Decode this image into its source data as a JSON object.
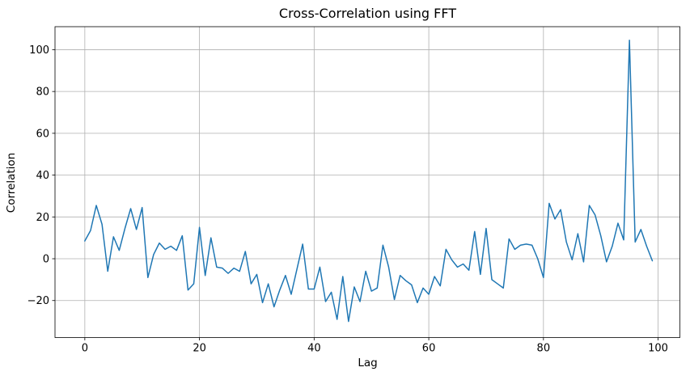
{
  "chart_data": {
    "type": "line",
    "title": "Cross-Correlation using FFT",
    "xlabel": "Lag",
    "ylabel": "Correlation",
    "xlim": [
      -5.2,
      103.8
    ],
    "ylim": [
      -37.7,
      111.0
    ],
    "xticks": [
      0,
      20,
      40,
      60,
      80,
      100
    ],
    "yticks": [
      -20,
      0,
      20,
      40,
      60,
      80,
      100
    ],
    "grid": true,
    "legend": "none",
    "line_color": "#1f77b4",
    "grid_color": "#b0b0b0",
    "background_color": "#ffffff",
    "x": [
      0,
      1,
      2,
      3,
      4,
      5,
      6,
      7,
      8,
      9,
      10,
      11,
      12,
      13,
      14,
      15,
      16,
      17,
      18,
      19,
      20,
      21,
      22,
      23,
      24,
      25,
      26,
      27,
      28,
      29,
      30,
      31,
      32,
      33,
      34,
      35,
      36,
      37,
      38,
      39,
      40,
      41,
      42,
      43,
      44,
      45,
      46,
      47,
      48,
      49,
      50,
      51,
      52,
      53,
      54,
      55,
      56,
      57,
      58,
      59,
      60,
      61,
      62,
      63,
      64,
      65,
      66,
      67,
      68,
      69,
      70,
      71,
      72,
      73,
      74,
      75,
      76,
      77,
      78,
      79,
      80,
      81,
      82,
      83,
      84,
      85,
      86,
      87,
      88,
      89,
      90,
      91,
      92,
      93,
      94,
      95,
      96,
      97,
      98,
      99
    ],
    "values": [
      8.5,
      13.5,
      25.5,
      16.5,
      -6,
      10.5,
      4,
      14.5,
      24,
      14,
      24.5,
      -9,
      2,
      7.5,
      4.5,
      6,
      4,
      11,
      -15,
      -12,
      15,
      -8,
      10,
      -4,
      -4.5,
      -7,
      -4.5,
      -6,
      3.5,
      -12,
      -7.5,
      -21,
      -12,
      -23,
      -15,
      -8,
      -17,
      -5,
      7,
      -14.5,
      -14.5,
      -4,
      -20.5,
      -16,
      -29,
      -8.5,
      -30,
      -13.5,
      -20.5,
      -6,
      -15.5,
      -14,
      6.5,
      -4,
      -19.5,
      -8,
      -10.5,
      -12.5,
      -21,
      -14,
      -17,
      -8.5,
      -13,
      4.5,
      -0.5,
      -4,
      -2.5,
      -5.5,
      13,
      -7.5,
      14.5,
      -10,
      -12,
      -14,
      9.5,
      4.5,
      6.5,
      7,
      6.5,
      0,
      -9,
      26.5,
      19,
      23.5,
      8,
      -0.5,
      12,
      -1.5,
      25.5,
      21,
      11,
      -1.5,
      6,
      17,
      9,
      104.5,
      8,
      14,
      6,
      -1
    ]
  }
}
